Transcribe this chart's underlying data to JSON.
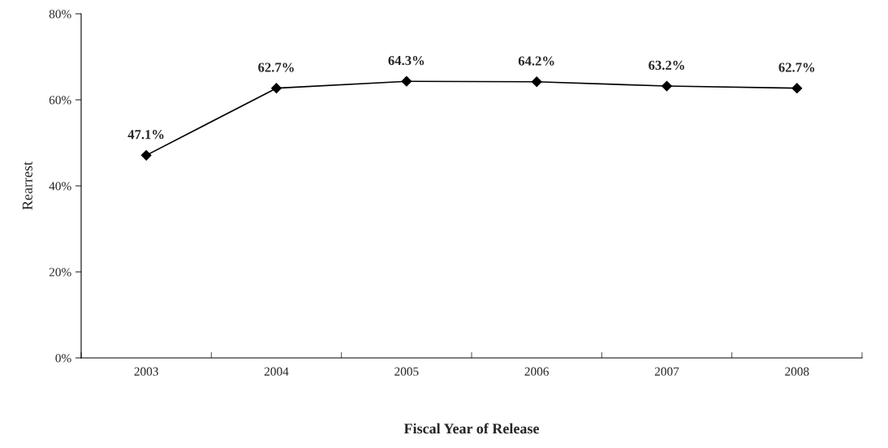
{
  "chart_data": {
    "type": "line",
    "xlabel": "Fiscal Year of Release",
    "ylabel": "Rearrest",
    "categories": [
      "2003",
      "2004",
      "2005",
      "2006",
      "2007",
      "2008"
    ],
    "series": [
      {
        "color": "#000000",
        "values": [
          47.1,
          62.7,
          64.3,
          64.2,
          63.2,
          62.7
        ],
        "value_labels": [
          "47.1%",
          "62.7%",
          "64.3%",
          "64.2%",
          "63.2%",
          "62.7%"
        ]
      }
    ],
    "ylim": [
      0,
      80
    ],
    "yticks": [
      {
        "value": 0,
        "label": "0%"
      },
      {
        "value": 20,
        "label": "20%"
      },
      {
        "value": 40,
        "label": "40%"
      },
      {
        "value": 60,
        "label": "60%"
      },
      {
        "value": 80,
        "label": "80%"
      }
    ],
    "marker": "diamond",
    "line_style": "solid",
    "grid": false,
    "legend": false
  }
}
